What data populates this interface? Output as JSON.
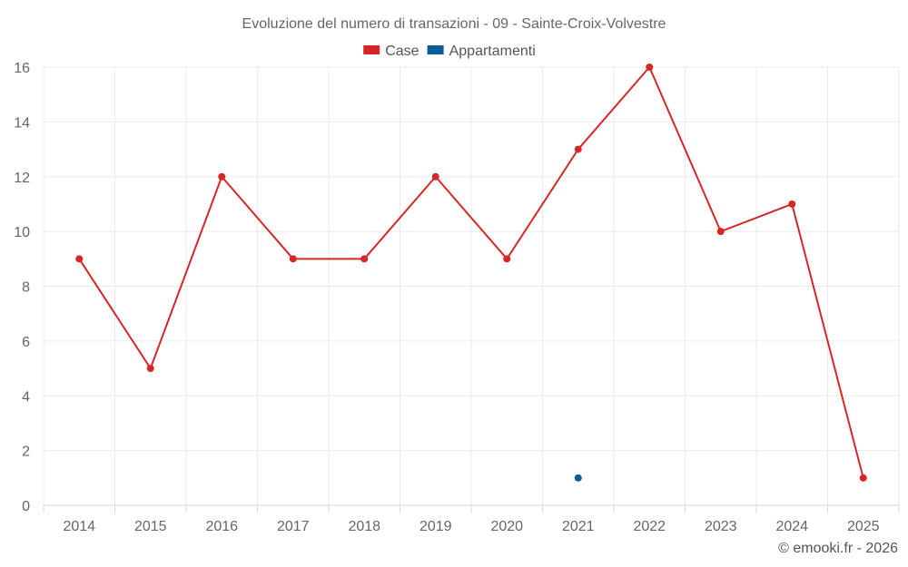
{
  "chart_data": {
    "type": "line",
    "title": "Evoluzione del numero di transazioni - 09 - Sainte-Croix-Volvestre",
    "categories": [
      "2014",
      "2015",
      "2016",
      "2017",
      "2018",
      "2019",
      "2020",
      "2021",
      "2022",
      "2023",
      "2024",
      "2025"
    ],
    "series": [
      {
        "name": "Case",
        "color": "#d62728",
        "values": [
          9,
          5,
          12,
          9,
          9,
          12,
          9,
          13,
          16,
          10,
          11,
          1
        ]
      },
      {
        "name": "Appartamenti",
        "color": "#0b5d99",
        "values": [
          null,
          null,
          null,
          null,
          null,
          null,
          null,
          1,
          null,
          null,
          null,
          null
        ]
      }
    ],
    "ylim": [
      0,
      16
    ],
    "yticks": [
      0,
      2,
      4,
      6,
      8,
      10,
      12,
      14,
      16
    ],
    "grid": true,
    "legend_position": "top-center"
  },
  "credit": "© emooki.fr - 2026"
}
